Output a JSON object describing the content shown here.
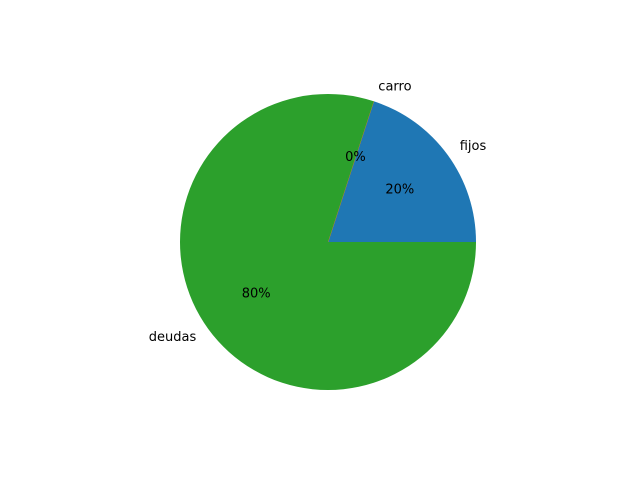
{
  "chart_data": {
    "type": "pie",
    "title": "",
    "slices": [
      {
        "label": "fijos",
        "value": 20,
        "pct_label": "20%",
        "color": "#1f77b4"
      },
      {
        "label": "carro",
        "value": 0,
        "pct_label": "0%",
        "color": "#ff7f0e"
      },
      {
        "label": "deudas",
        "value": 80,
        "pct_label": "80%",
        "color": "#2ca02c"
      }
    ],
    "start_angle_deg": 0,
    "direction": "counterclockwise",
    "legend": "none"
  }
}
